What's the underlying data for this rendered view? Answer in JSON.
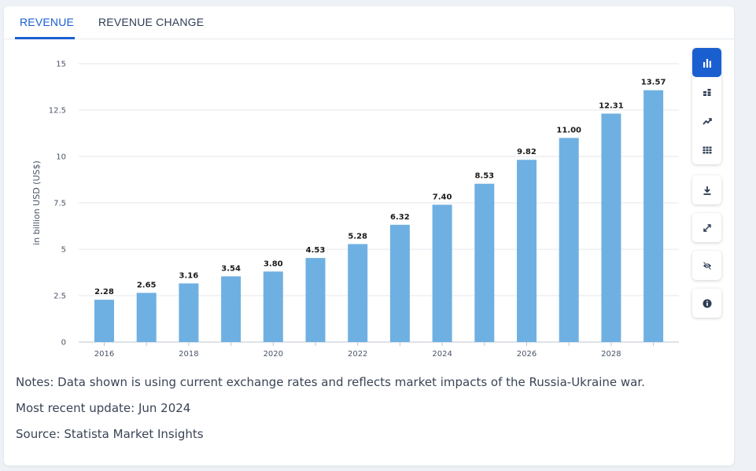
{
  "tabs": [
    {
      "label": "REVENUE",
      "active": true
    },
    {
      "label": "REVENUE CHANGE",
      "active": false
    }
  ],
  "accent_color": "#1a5fd0",
  "bar_color": "#6fb0e2",
  "chart_data": {
    "type": "bar",
    "categories": [
      "2016",
      "2017",
      "2018",
      "2019",
      "2020",
      "2021",
      "2022",
      "2023",
      "2024",
      "2025",
      "2026",
      "2027",
      "2028",
      "2029"
    ],
    "values": [
      2.28,
      2.65,
      3.16,
      3.54,
      3.8,
      4.53,
      5.28,
      6.32,
      7.4,
      8.53,
      9.82,
      11.0,
      12.31,
      13.57
    ],
    "value_labels": [
      "2.28",
      "2.65",
      "3.16",
      "3.54",
      "3.80",
      "4.53",
      "5.28",
      "6.32",
      "7.40",
      "8.53",
      "9.82",
      "11.00",
      "12.31",
      "13.57"
    ],
    "x_tick_labels": [
      "2016",
      "2018",
      "2020",
      "2022",
      "2024",
      "2026",
      "2028"
    ],
    "y_ticks": [
      0,
      2.5,
      5,
      7.5,
      10,
      12.5,
      15
    ],
    "y_tick_labels": [
      "0",
      "2.5",
      "5",
      "7.5",
      "10",
      "12.5",
      "15"
    ],
    "ylim": [
      0,
      15
    ],
    "ylabel": "in billion USD (US$)",
    "xlabel": "",
    "title": "",
    "grid": true
  },
  "toolbar": {
    "chart_types": [
      {
        "icon": "bar-chart-icon",
        "active": true
      },
      {
        "icon": "stacked-chart-icon",
        "active": false
      },
      {
        "icon": "line-chart-icon",
        "active": false
      },
      {
        "icon": "table-grid-icon",
        "active": false
      }
    ],
    "actions": [
      {
        "icon": "download-icon"
      },
      {
        "icon": "expand-icon"
      },
      {
        "icon": "hide-icon"
      },
      {
        "icon": "info-icon"
      }
    ]
  },
  "notes": {
    "notes_text": "Notes: Data shown is using current exchange rates and reflects market impacts of the Russia-Ukraine war.",
    "update_text": "Most recent update: Jun 2024",
    "source_text": "Source: Statista Market Insights"
  }
}
